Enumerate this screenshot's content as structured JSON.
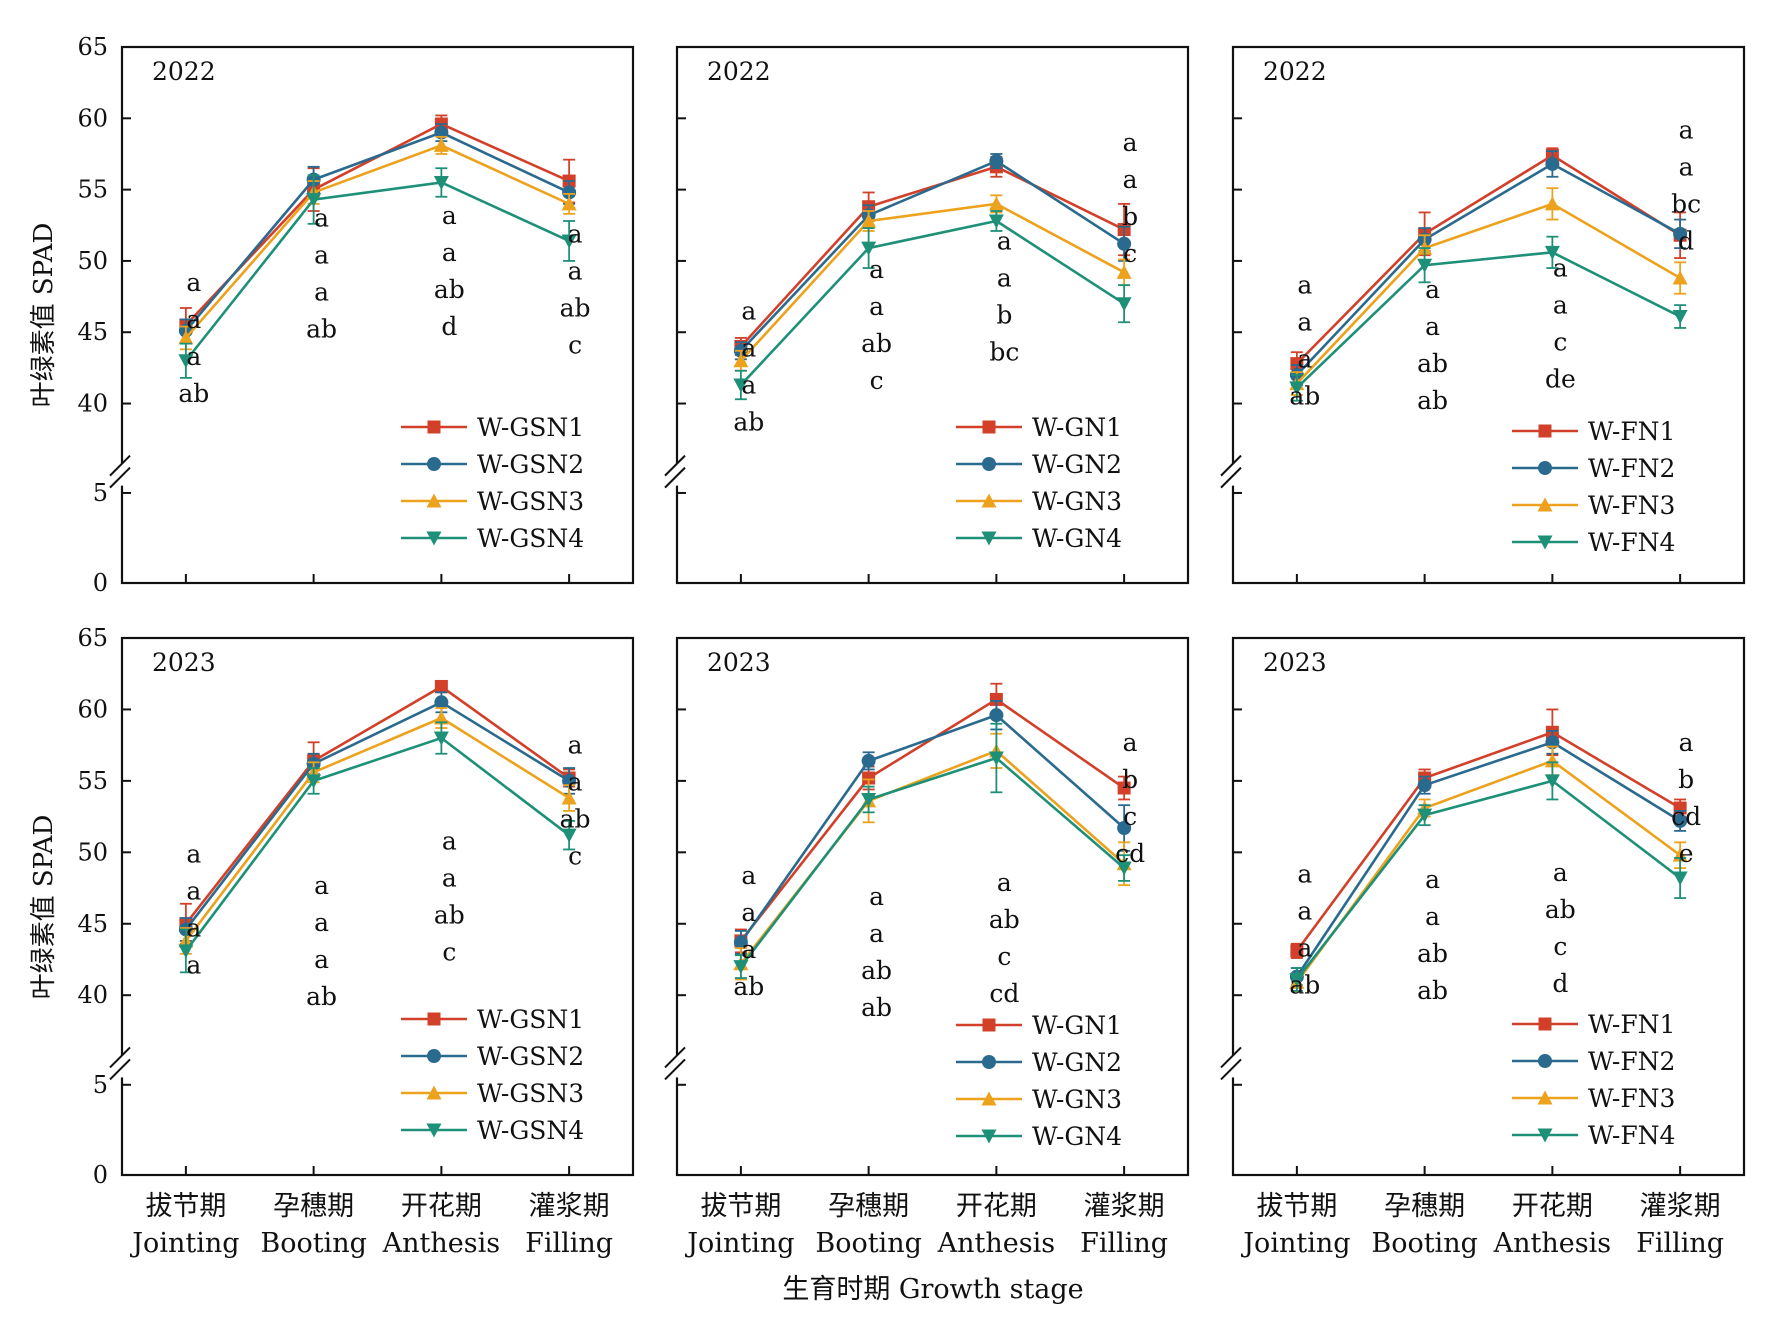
{
  "figure": {
    "ylabel": "叶绿素值 SPAD",
    "xlabel": "生育时期 Growth stage"
  },
  "colors": {
    "N1": "#d2402a",
    "N2": "#2a6a8e",
    "N3": "#eda21d",
    "N4": "#1e9078"
  },
  "chart_data": [
    {
      "type": "line",
      "year_label": "2022",
      "categories": [
        "拔节期 Jointing",
        "孕穗期 Booting",
        "开花期 Anthesis",
        "灌浆期 Filling"
      ],
      "category_labels_cn": [
        "拔节期",
        "孕穗期",
        "开花期",
        "灌浆期"
      ],
      "category_labels_en": [
        "Jointing",
        "Booting",
        "Anthesis",
        "Filling"
      ],
      "ylim": [
        0,
        65
      ],
      "axis_break": [
        5,
        37
      ],
      "yticks": [
        0,
        5,
        40,
        45,
        50,
        55,
        60,
        65
      ],
      "grid": false,
      "legend_position": "bottom-right",
      "series": [
        {
          "name": "W-GSN1",
          "marker": "square",
          "values": [
            45.5,
            55.0,
            59.6,
            55.6
          ],
          "errors": [
            1.2,
            1.5,
            0.6,
            1.5
          ]
        },
        {
          "name": "W-GSN2",
          "marker": "circle",
          "values": [
            45.1,
            55.7,
            59.0,
            54.8
          ],
          "errors": [
            0.8,
            0.9,
            0.6,
            0.8
          ]
        },
        {
          "name": "W-GSN3",
          "marker": "triangle-up",
          "values": [
            44.6,
            54.8,
            58.1,
            54.0
          ],
          "errors": [
            0.8,
            0.8,
            0.6,
            0.7
          ]
        },
        {
          "name": "W-GSN4",
          "marker": "triangle-down",
          "values": [
            43.0,
            54.3,
            55.5,
            51.4
          ],
          "errors": [
            1.2,
            1.7,
            1.0,
            1.4
          ]
        }
      ],
      "significance": [
        [
          "a",
          "a",
          "a",
          "ab"
        ],
        [
          "a",
          "a",
          "a",
          "ab"
        ],
        [
          "a",
          "a",
          "ab",
          "d"
        ],
        [
          "a",
          "a",
          "ab",
          "c"
        ]
      ],
      "sig_anchor": [
        47.9,
        52.4,
        52.6,
        51.3
      ]
    },
    {
      "type": "line",
      "year_label": "2022",
      "categories": [
        "拔节期 Jointing",
        "孕穗期 Booting",
        "开花期 Anthesis",
        "灌浆期 Filling"
      ],
      "category_labels_cn": [
        "拔节期",
        "孕穗期",
        "开花期",
        "灌浆期"
      ],
      "category_labels_en": [
        "Jointing",
        "Booting",
        "Anthesis",
        "Filling"
      ],
      "ylim": [
        0,
        65
      ],
      "axis_break": [
        5,
        37
      ],
      "yticks": [
        0,
        5,
        40,
        45,
        50,
        55,
        60,
        65
      ],
      "grid": false,
      "legend_position": "bottom-right",
      "series": [
        {
          "name": "W-GN1",
          "marker": "square",
          "values": [
            44.0,
            53.8,
            56.6,
            52.2
          ],
          "errors": [
            0.6,
            1.0,
            0.7,
            1.8
          ]
        },
        {
          "name": "W-GN2",
          "marker": "circle",
          "values": [
            43.7,
            53.2,
            57.0,
            51.2
          ],
          "errors": [
            0.6,
            0.7,
            0.5,
            1.2
          ]
        },
        {
          "name": "W-GN3",
          "marker": "triangle-up",
          "values": [
            43.0,
            52.8,
            54.0,
            49.2
          ],
          "errors": [
            0.7,
            0.7,
            0.6,
            0.9
          ]
        },
        {
          "name": "W-GN4",
          "marker": "triangle-down",
          "values": [
            41.3,
            50.9,
            52.8,
            47.0
          ],
          "errors": [
            1.0,
            1.4,
            0.7,
            1.3
          ]
        }
      ],
      "significance": [
        [
          "a",
          "a",
          "a",
          "ab"
        ],
        [
          "a",
          "a",
          "ab",
          "c"
        ],
        [
          "a",
          "a",
          "b",
          "bc"
        ],
        [
          "a",
          "a",
          "b",
          "c"
        ]
      ],
      "sig_anchor": [
        45.9,
        48.8,
        50.8,
        57.7
      ]
    },
    {
      "type": "line",
      "year_label": "2022",
      "categories": [
        "拔节期 Jointing",
        "孕穗期 Booting",
        "开花期 Anthesis",
        "灌浆期 Filling"
      ],
      "category_labels_cn": [
        "拔节期",
        "孕穗期",
        "开花期",
        "灌浆期"
      ],
      "category_labels_en": [
        "Jointing",
        "Booting",
        "Anthesis",
        "Filling"
      ],
      "ylim": [
        0,
        65
      ],
      "axis_break": [
        5,
        37
      ],
      "yticks": [
        0,
        5,
        40,
        45,
        50,
        55,
        60,
        65
      ],
      "grid": false,
      "legend_position": "bottom-right",
      "series": [
        {
          "name": "W-FN1",
          "marker": "square",
          "values": [
            42.8,
            51.9,
            57.4,
            51.8
          ],
          "errors": [
            0.8,
            1.5,
            0.5,
            1.6
          ]
        },
        {
          "name": "W-FN2",
          "marker": "circle",
          "values": [
            42.0,
            51.5,
            56.8,
            51.9
          ],
          "errors": [
            0.7,
            0.8,
            0.9,
            1.0
          ]
        },
        {
          "name": "W-FN3",
          "marker": "triangle-up",
          "values": [
            41.4,
            50.9,
            54.0,
            48.8
          ],
          "errors": [
            0.8,
            0.9,
            1.1,
            1.1
          ]
        },
        {
          "name": "W-FN4",
          "marker": "triangle-down",
          "values": [
            41.1,
            49.7,
            50.6,
            46.1
          ],
          "errors": [
            0.9,
            1.2,
            1.1,
            0.8
          ]
        }
      ],
      "significance": [
        [
          "a",
          "a",
          "a",
          "ab"
        ],
        [
          "a",
          "a",
          "ab",
          "ab"
        ],
        [
          "a",
          "a",
          "c",
          "de"
        ],
        [
          "a",
          "a",
          "bc",
          "d"
        ]
      ],
      "sig_anchor": [
        47.7,
        47.4,
        48.9,
        58.6
      ]
    },
    {
      "type": "line",
      "year_label": "2023",
      "categories": [
        "拔节期 Jointing",
        "孕穗期 Booting",
        "开花期 Anthesis",
        "灌浆期 Filling"
      ],
      "category_labels_cn": [
        "拔节期",
        "孕穗期",
        "开花期",
        "灌浆期"
      ],
      "category_labels_en": [
        "Jointing",
        "Booting",
        "Anthesis",
        "Filling"
      ],
      "ylim": [
        0,
        65
      ],
      "axis_break": [
        5,
        37
      ],
      "yticks": [
        0,
        5,
        40,
        45,
        50,
        55,
        60,
        65
      ],
      "grid": false,
      "legend_position": "bottom-right",
      "series": [
        {
          "name": "W-GSN1",
          "marker": "square",
          "values": [
            45.0,
            56.4,
            61.6,
            55.2
          ],
          "errors": [
            1.4,
            1.3,
            0.4,
            0.6
          ]
        },
        {
          "name": "W-GSN2",
          "marker": "circle",
          "values": [
            44.6,
            56.2,
            60.5,
            55.0
          ],
          "errors": [
            0.8,
            0.7,
            0.7,
            0.9
          ]
        },
        {
          "name": "W-GSN3",
          "marker": "triangle-up",
          "values": [
            43.8,
            55.6,
            59.4,
            53.8
          ],
          "errors": [
            0.9,
            0.7,
            0.7,
            0.9
          ]
        },
        {
          "name": "W-GSN4",
          "marker": "triangle-down",
          "values": [
            43.1,
            55.0,
            58.0,
            51.2
          ],
          "errors": [
            1.5,
            0.9,
            1.1,
            1.0
          ]
        }
      ],
      "significance": [
        [
          "a",
          "a",
          "a",
          "a"
        ],
        [
          "a",
          "a",
          "a",
          "ab"
        ],
        [
          "a",
          "a",
          "ab",
          "c"
        ],
        [
          "a",
          "a",
          "ab",
          "c"
        ]
      ],
      "sig_anchor": [
        49.3,
        47.1,
        50.2,
        56.9
      ]
    },
    {
      "type": "line",
      "year_label": "2023",
      "categories": [
        "拔节期 Jointing",
        "孕穗期 Booting",
        "开花期 Anthesis",
        "灌浆期 Filling"
      ],
      "category_labels_cn": [
        "拔节期",
        "孕穗期",
        "开花期",
        "灌浆期"
      ],
      "category_labels_en": [
        "Jointing",
        "Booting",
        "Anthesis",
        "Filling"
      ],
      "ylim": [
        0,
        65
      ],
      "axis_break": [
        5,
        37
      ],
      "yticks": [
        0,
        5,
        40,
        45,
        50,
        55,
        60,
        65
      ],
      "grid": false,
      "legend_position": "bottom-right",
      "series": [
        {
          "name": "W-GN1",
          "marker": "square",
          "values": [
            43.8,
            55.2,
            60.7,
            54.5
          ],
          "errors": [
            0.8,
            0.8,
            1.1,
            0.8
          ]
        },
        {
          "name": "W-GN2",
          "marker": "circle",
          "values": [
            43.7,
            56.4,
            59.6,
            51.7
          ],
          "errors": [
            0.8,
            0.6,
            1.0,
            1.6
          ]
        },
        {
          "name": "W-GN3",
          "marker": "triangle-up",
          "values": [
            42.2,
            53.6,
            57.1,
            49.2
          ],
          "errors": [
            1.1,
            1.5,
            1.2,
            1.5
          ]
        },
        {
          "name": "W-GN4",
          "marker": "triangle-down",
          "values": [
            42.0,
            53.7,
            56.6,
            48.9
          ],
          "errors": [
            0.8,
            0.9,
            2.4,
            0.9
          ]
        }
      ],
      "significance": [
        [
          "a",
          "a",
          "a",
          "ab"
        ],
        [
          "a",
          "a",
          "ab",
          "ab"
        ],
        [
          "a",
          "ab",
          "c",
          "cd"
        ],
        [
          "a",
          "b",
          "c",
          "cd"
        ]
      ],
      "sig_anchor": [
        47.8,
        46.3,
        47.3,
        57.1
      ]
    },
    {
      "type": "line",
      "year_label": "2023",
      "categories": [
        "拔节期 Jointing",
        "孕穗期 Booting",
        "开花期 Anthesis",
        "灌浆期 Filling"
      ],
      "category_labels_cn": [
        "拔节期",
        "孕穗期",
        "开花期",
        "灌浆期"
      ],
      "category_labels_en": [
        "Jointing",
        "Booting",
        "Anthesis",
        "Filling"
      ],
      "ylim": [
        0,
        65
      ],
      "axis_break": [
        5,
        37
      ],
      "yticks": [
        0,
        5,
        40,
        45,
        50,
        55,
        60,
        65
      ],
      "grid": false,
      "legend_position": "bottom-right",
      "series": [
        {
          "name": "W-FN1",
          "marker": "square",
          "values": [
            43.1,
            55.2,
            58.4,
            53.1
          ],
          "errors": [
            0.5,
            0.6,
            1.6,
            0.6
          ]
        },
        {
          "name": "W-FN2",
          "marker": "circle",
          "values": [
            41.3,
            54.7,
            57.7,
            52.2
          ],
          "errors": [
            0.6,
            0.6,
            0.8,
            0.7
          ]
        },
        {
          "name": "W-FN3",
          "marker": "triangle-up",
          "values": [
            40.9,
            53.1,
            56.4,
            49.8
          ],
          "errors": [
            0.6,
            0.6,
            1.0,
            0.9
          ]
        },
        {
          "name": "W-FN4",
          "marker": "triangle-down",
          "values": [
            41.1,
            52.6,
            55.0,
            48.2
          ],
          "errors": [
            0.8,
            0.7,
            1.3,
            1.4
          ]
        }
      ],
      "significance": [
        [
          "a",
          "a",
          "a",
          "ab"
        ],
        [
          "a",
          "a",
          "ab",
          "ab"
        ],
        [
          "a",
          "ab",
          "c",
          "d"
        ],
        [
          "a",
          "b",
          "cd",
          "e"
        ]
      ],
      "sig_anchor": [
        47.9,
        47.5,
        48.0,
        57.1
      ]
    }
  ]
}
